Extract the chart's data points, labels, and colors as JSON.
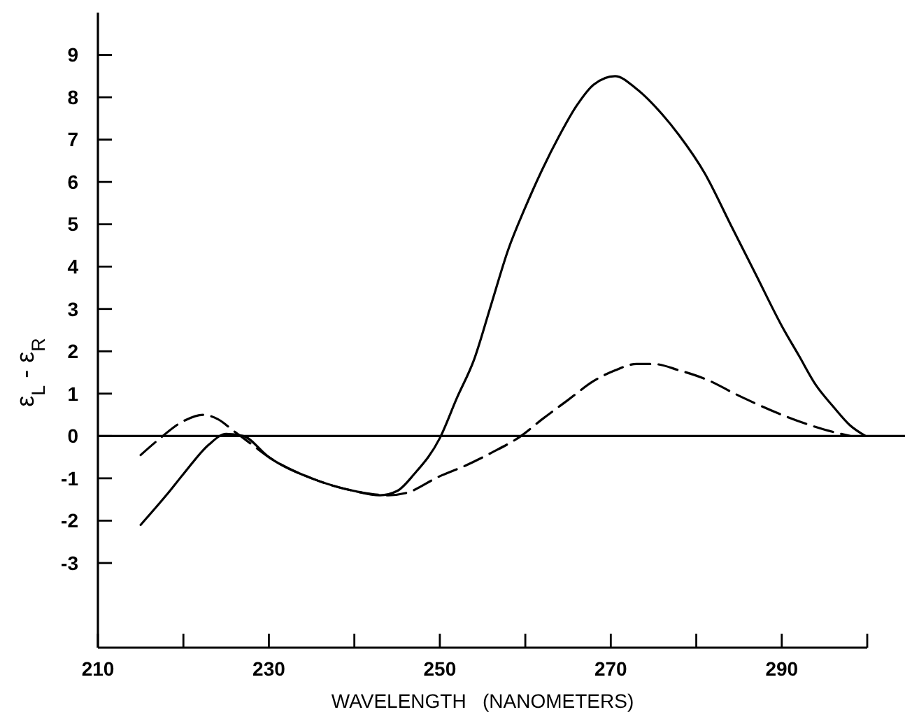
{
  "chart_data": {
    "type": "line",
    "xlabel": "WAVELENGTH   (NANOMETERS)",
    "ylabel": "ε$_{L}$ - ε$_{R}$",
    "xlim": [
      210,
      300
    ],
    "ylim": [
      -5,
      10
    ],
    "xticks": [
      210,
      {
        "value": 220,
        "label": null
      },
      230,
      {
        "value": 240,
        "label": null
      },
      250,
      {
        "value": 260,
        "label": null
      },
      270,
      {
        "value": 280,
        "label": null
      },
      290,
      {
        "value": 300,
        "label": null
      }
    ],
    "yticks": [
      -3,
      -2,
      -1,
      0,
      1,
      2,
      3,
      4,
      5,
      6,
      7,
      8,
      9
    ],
    "grid": false,
    "marker": "none",
    "ref_lines": [
      {
        "axis": "y",
        "value": 0,
        "color": "#000000"
      }
    ],
    "series": [
      {
        "color": "#000000",
        "line_style": "solid",
        "x": [
          215,
          218,
          220,
          223,
          225,
          227,
          230,
          235,
          240,
          243,
          245,
          247,
          250,
          252,
          254,
          256,
          258,
          260,
          262,
          264,
          266,
          268,
          270.5,
          273,
          276,
          278,
          281,
          284,
          287,
          290,
          292,
          294,
          296,
          298,
          299.8
        ],
        "values": [
          -2.1,
          -1.4,
          -0.9,
          -0.2,
          0.05,
          0.0,
          -0.5,
          -1.0,
          -1.3,
          -1.4,
          -1.3,
          -0.9,
          -0.05,
          0.9,
          1.8,
          3.1,
          4.4,
          5.4,
          6.3,
          7.1,
          7.8,
          8.3,
          8.5,
          8.2,
          7.6,
          7.1,
          6.2,
          5.0,
          3.8,
          2.6,
          1.9,
          1.2,
          0.7,
          0.25,
          0.0
        ]
      },
      {
        "color": "#000000",
        "line_style": "dashed",
        "x": [
          215,
          217,
          220,
          222.3,
          224,
          226,
          228,
          230,
          235,
          240,
          244,
          246,
          250,
          253,
          256,
          259.5,
          262,
          265,
          268,
          270.5,
          273,
          275,
          278,
          281,
          285,
          290,
          295,
          298
        ],
        "values": [
          -0.45,
          -0.1,
          0.35,
          0.5,
          0.4,
          0.1,
          -0.2,
          -0.5,
          -1.0,
          -1.3,
          -1.4,
          -1.35,
          -0.95,
          -0.7,
          -0.4,
          0.0,
          0.4,
          0.85,
          1.3,
          1.55,
          1.7,
          1.7,
          1.55,
          1.35,
          0.95,
          0.5,
          0.15,
          0.0
        ]
      }
    ]
  }
}
